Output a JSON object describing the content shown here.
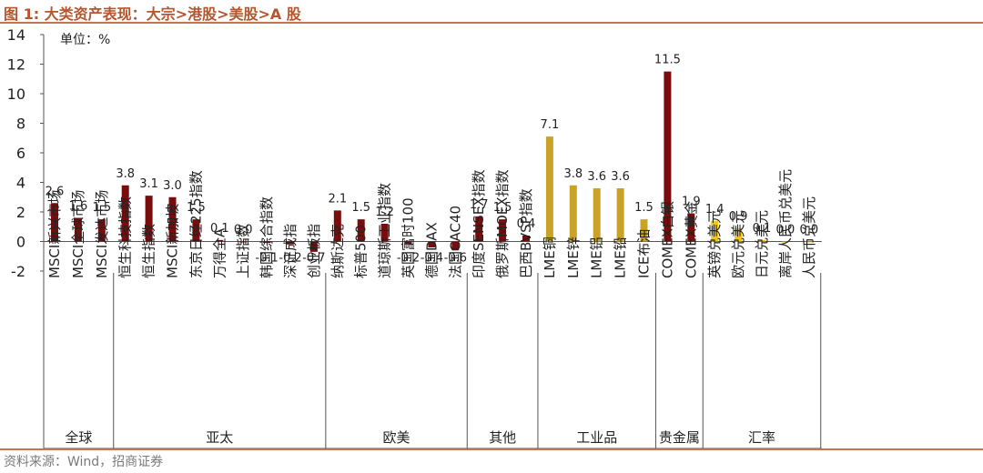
{
  "figure": {
    "title": "图 1:  大类资产表现：大宗>港股>美股>A 股",
    "source": "资料来源：Wind，招商证券"
  },
  "colors": {
    "dark_red": "#7b0c0c",
    "gold": "#c9a227",
    "yellow": "#f5c518",
    "axis": "#555555",
    "text": "#222222",
    "brand": "#c8734f"
  },
  "chart_data": {
    "type": "bar",
    "title": "",
    "unit_label": "单位：%",
    "xlabel": "",
    "ylabel": "",
    "ylim": [
      -2,
      14
    ],
    "yticks": [
      "-2",
      "0",
      "2",
      "4",
      "6",
      "8",
      "10",
      "12",
      "14"
    ],
    "categories": [
      "MSCI新兴市场",
      "MSCI全球市场",
      "MSCI发达市场",
      "恒生科技指数",
      "恒生指数",
      "MSCI新加坡",
      "东京日经225指数",
      "万得全A",
      "上证指数",
      "韩国综合指数",
      "深证成指",
      "创业板指",
      "纳斯达克",
      "标普500",
      "道琼斯工业指数",
      "英国富时100",
      "德国DAX",
      "法国CAC40",
      "印度SENSEX指数",
      "俄罗斯MOEX指数",
      "巴西BVSP指数",
      "LME铜",
      "LME锌",
      "LME铝",
      "LME铅",
      "ICE布油",
      "COMEX白银",
      "COMEX黄金",
      "英镑兑美元",
      "欧元兑美元",
      "日元兑美元",
      "离岸人民币兑美元",
      "人民币兑美元"
    ],
    "values": [
      2.6,
      1.6,
      1.5,
      3.8,
      3.1,
      3.0,
      1.5,
      0.1,
      0.0,
      -0.1,
      -0.2,
      -0.7,
      2.1,
      1.5,
      1.2,
      -0.2,
      -0.4,
      -0.6,
      1.7,
      1.5,
      0.4,
      7.1,
      3.8,
      3.6,
      3.6,
      1.5,
      11.5,
      1.9,
      1.4,
      0.9,
      0.1,
      0.0,
      0.0
    ],
    "value_labels": [
      "2.6",
      "1.6",
      "1.5",
      "3.8",
      "3.1",
      "3.0",
      "1.5",
      "0.1",
      "0.0",
      "-0.1",
      "-0.2",
      "-0.7",
      "2.1",
      "1.5",
      "1.2",
      "-0.2",
      "-0.4",
      "-0.6",
      "1.7",
      "1.5",
      "0.4",
      "7.1",
      "3.8",
      "3.6",
      "3.6",
      "1.5",
      "11.5",
      "1.9",
      "1.4",
      "0.9",
      "0.1",
      "0.0",
      "0.0"
    ],
    "bar_colors": [
      "dark_red",
      "dark_red",
      "dark_red",
      "dark_red",
      "dark_red",
      "dark_red",
      "dark_red",
      "dark_red",
      "dark_red",
      "dark_red",
      "dark_red",
      "dark_red",
      "dark_red",
      "dark_red",
      "dark_red",
      "dark_red",
      "dark_red",
      "dark_red",
      "dark_red",
      "dark_red",
      "dark_red",
      "gold",
      "gold",
      "gold",
      "gold",
      "gold",
      "dark_red",
      "dark_red",
      "yellow",
      "yellow",
      "yellow",
      "yellow",
      "yellow"
    ],
    "groups": [
      {
        "name": "全球",
        "count": 3
      },
      {
        "name": "亚太",
        "count": 9
      },
      {
        "name": "欧美",
        "count": 6
      },
      {
        "name": "其他",
        "count": 3
      },
      {
        "name": "工业品",
        "count": 5
      },
      {
        "name": "贵金属",
        "count": 2
      },
      {
        "name": "汇率",
        "count": 5
      }
    ]
  }
}
